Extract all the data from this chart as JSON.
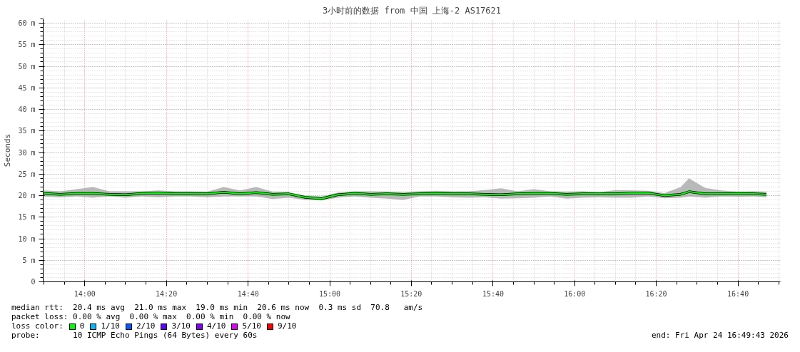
{
  "chart_data": {
    "type": "line",
    "title": "3小时前的数据 from 中国 上海-2 AS17621",
    "ylabel": "Seconds",
    "x": [
      13.833,
      13.9,
      13.967,
      14.033,
      14.1,
      14.167,
      14.233,
      14.3,
      14.367,
      14.433,
      14.5,
      14.567,
      14.633,
      14.7,
      14.767,
      14.833,
      14.9,
      14.967,
      15.033,
      15.1,
      15.167,
      15.233,
      15.3,
      15.367,
      15.433,
      15.5,
      15.567,
      15.633,
      15.7,
      15.767,
      15.833,
      15.9,
      15.967,
      16.033,
      16.1,
      16.167,
      16.233,
      16.3,
      16.367,
      16.433,
      16.467,
      16.533,
      16.6,
      16.667,
      16.733,
      16.783
    ],
    "series": [
      {
        "name": "0",
        "color": "#00ff00",
        "values": [
          20.5,
          20.3,
          20.5,
          20.5,
          20.3,
          20.2,
          20.5,
          20.6,
          20.4,
          20.4,
          20.4,
          20.8,
          20.4,
          20.7,
          20.3,
          20.4,
          19.6,
          19.3,
          20.2,
          20.5,
          20.3,
          20.4,
          20.3,
          20.4,
          20.5,
          20.4,
          20.4,
          20.3,
          20.2,
          20.4,
          20.5,
          20.5,
          20.3,
          20.4,
          20.4,
          20.4,
          20.6,
          20.6,
          20.0,
          20.3,
          20.9,
          20.4,
          20.4,
          20.5,
          20.4,
          20.3
        ],
        "lower": [
          19.8,
          19.6,
          19.8,
          19.5,
          19.8,
          19.5,
          19.8,
          19.6,
          19.8,
          19.8,
          19.6,
          19.8,
          19.8,
          19.8,
          19.2,
          19.5,
          19.0,
          18.9,
          19.5,
          19.8,
          19.5,
          19.3,
          19.0,
          19.8,
          19.8,
          19.6,
          19.5,
          19.6,
          19.3,
          19.4,
          19.5,
          19.8,
          19.3,
          19.5,
          19.6,
          19.5,
          19.5,
          19.8,
          19.4,
          19.5,
          19.8,
          19.5,
          19.8,
          19.7,
          19.8,
          19.6
        ],
        "upper": [
          21.2,
          21.0,
          21.5,
          22.0,
          21.0,
          21.0,
          21.0,
          21.2,
          21.0,
          21.0,
          20.9,
          22.0,
          21.2,
          22.0,
          20.9,
          20.8,
          20.0,
          19.8,
          20.7,
          21.0,
          21.0,
          20.9,
          20.8,
          21.0,
          21.1,
          21.0,
          21.0,
          21.3,
          21.7,
          21.0,
          21.5,
          21.0,
          20.9,
          21.0,
          20.8,
          21.3,
          21.2,
          21.1,
          20.6,
          22.0,
          24.0,
          21.8,
          21.2,
          20.9,
          21.0,
          20.9
        ]
      },
      {
        "name": "1/10",
        "color": "#00b8ff",
        "values": [
          null,
          null,
          null,
          null,
          null,
          null,
          null,
          null,
          null,
          null,
          null,
          null,
          null,
          null,
          null,
          null,
          null,
          null,
          null,
          null,
          null,
          null,
          null,
          null,
          null,
          null,
          null,
          null,
          null,
          null,
          null,
          null,
          null,
          null,
          null,
          null,
          null,
          null,
          null,
          null,
          null,
          null,
          null,
          null,
          null,
          null
        ]
      },
      {
        "name": "2/10",
        "color": "#0059ff",
        "values": [
          null,
          null,
          null,
          null,
          null,
          null,
          null,
          null,
          null,
          null,
          null,
          null,
          null,
          null,
          null,
          null,
          null,
          null,
          null,
          null,
          null,
          null,
          null,
          null,
          null,
          null,
          null,
          null,
          null,
          null,
          null,
          null,
          null,
          null,
          null,
          null,
          null,
          null,
          null,
          null,
          null,
          null,
          null,
          null,
          null,
          null
        ]
      },
      {
        "name": "3/10",
        "color": "#5e00ff",
        "values": [
          null,
          null,
          null,
          null,
          null,
          null,
          null,
          null,
          null,
          null,
          null,
          null,
          null,
          null,
          null,
          null,
          null,
          null,
          null,
          null,
          null,
          null,
          null,
          null,
          null,
          null,
          null,
          null,
          null,
          null,
          null,
          null,
          null,
          null,
          null,
          null,
          null,
          null,
          null,
          null,
          null,
          null,
          null,
          null,
          null,
          null
        ]
      },
      {
        "name": "4/10",
        "color": "#7e00ff",
        "values": [
          null,
          null,
          null,
          null,
          null,
          null,
          null,
          null,
          null,
          null,
          null,
          null,
          null,
          null,
          null,
          null,
          null,
          null,
          null,
          null,
          null,
          null,
          null,
          null,
          null,
          null,
          null,
          null,
          null,
          null,
          null,
          null,
          null,
          null,
          null,
          null,
          null,
          null,
          null,
          null,
          null,
          null,
          null,
          null,
          null,
          null
        ]
      },
      {
        "name": "5/10",
        "color": "#dd00ff",
        "values": [
          null,
          null,
          null,
          null,
          null,
          null,
          null,
          null,
          null,
          null,
          null,
          null,
          null,
          null,
          null,
          null,
          null,
          null,
          null,
          null,
          null,
          null,
          null,
          null,
          null,
          null,
          null,
          null,
          null,
          null,
          null,
          null,
          null,
          null,
          null,
          null,
          null,
          null,
          null,
          null,
          null,
          null,
          null,
          null,
          null,
          null
        ]
      },
      {
        "name": "9/10",
        "color": "#ff0000",
        "values": [
          null,
          null,
          null,
          null,
          null,
          null,
          null,
          null,
          null,
          null,
          null,
          null,
          null,
          null,
          null,
          null,
          null,
          null,
          null,
          null,
          null,
          null,
          null,
          null,
          null,
          null,
          null,
          null,
          null,
          null,
          null,
          null,
          null,
          null,
          null,
          null,
          null,
          null,
          null,
          null,
          null,
          null,
          null,
          null,
          null,
          null
        ]
      }
    ],
    "legend_title": "loss color:",
    "legend": "bottom",
    "grid": true,
    "xlim": [
      13.83,
      16.84
    ],
    "xticks": [
      {
        "value": 14,
        "label": "14:00"
      },
      {
        "value": 14.333,
        "label": "14:20"
      },
      {
        "value": 14.667,
        "label": "14:40"
      },
      {
        "value": 15,
        "label": "15:00"
      },
      {
        "value": 15.333,
        "label": "15:20"
      },
      {
        "value": 15.667,
        "label": "15:40"
      },
      {
        "value": 16,
        "label": "16:00"
      },
      {
        "value": 16.333,
        "label": "16:20"
      },
      {
        "value": 16.667,
        "label": "16:40"
      }
    ],
    "ylim": [
      0,
      61
    ],
    "yticks": [
      0,
      {
        "value": 5,
        "label": "5 m"
      },
      {
        "value": 10,
        "label": "10 m"
      },
      {
        "value": 15,
        "label": "15 m"
      },
      {
        "value": 20,
        "label": "20 m"
      },
      {
        "value": 25,
        "label": "25 m"
      },
      {
        "value": 30,
        "label": "30 m"
      },
      {
        "value": 35,
        "label": "35 m"
      },
      {
        "value": 40,
        "label": "40 m"
      },
      {
        "value": 45,
        "label": "45 m"
      },
      {
        "value": 50,
        "label": "50 m"
      },
      {
        "value": 55,
        "label": "55 m"
      },
      {
        "value": 60,
        "label": "60 m"
      }
    ],
    "annotations": [
      "median rtt:  20.4 ms avg  21.0 ms max  19.0 ms min  20.6 ms now  0.3 ms sd  70.8   am/s",
      "packet loss: 0.00 % avg  0.00 % max  0.00 % min  0.00 % now",
      "probe:       10 ICMP Echo Pings (64 Bytes) every 60s",
      "end: Fri Apr 24 16:49:43 2026"
    ]
  }
}
